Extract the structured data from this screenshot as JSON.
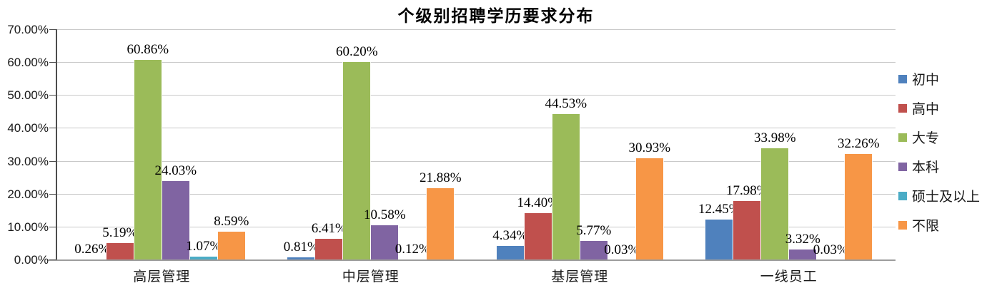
{
  "title": "个级别招聘学历要求分布",
  "chart_data": {
    "type": "bar",
    "title": "个级别招聘学历要求分布",
    "categories": [
      "高层管理",
      "中层管理",
      "基层管理",
      "一线员工"
    ],
    "series": [
      {
        "name": "初中",
        "color": "#4F81BD",
        "values": [
          0.26,
          0.81,
          4.34,
          12.45
        ]
      },
      {
        "name": "高中",
        "color": "#C0504D",
        "values": [
          5.19,
          6.41,
          14.4,
          17.98
        ]
      },
      {
        "name": "大专",
        "color": "#9BBB59",
        "values": [
          60.86,
          60.2,
          44.53,
          33.98
        ]
      },
      {
        "name": "本科",
        "color": "#8064A2",
        "values": [
          24.03,
          10.58,
          5.77,
          3.32
        ]
      },
      {
        "name": "硕士及以上",
        "color": "#4BACC6",
        "values": [
          1.07,
          0.12,
          0.03,
          0.03
        ]
      },
      {
        "name": "不限",
        "color": "#F79646",
        "values": [
          8.59,
          21.88,
          30.93,
          32.26
        ]
      }
    ],
    "yticks": [
      "0.00%",
      "10.00%",
      "20.00%",
      "30.00%",
      "40.00%",
      "50.00%",
      "60.00%",
      "70.00%"
    ],
    "ylim": [
      0,
      70
    ],
    "xlabel": "",
    "ylabel": "",
    "grid": true,
    "legend_position": "right",
    "data_label_format": "0.00%"
  },
  "style_colors": {
    "gridline": "#c9c9c9",
    "y_axis": "#4d4d4d",
    "x_axis": "#9c9c9c",
    "text": "#1a1a1a"
  }
}
